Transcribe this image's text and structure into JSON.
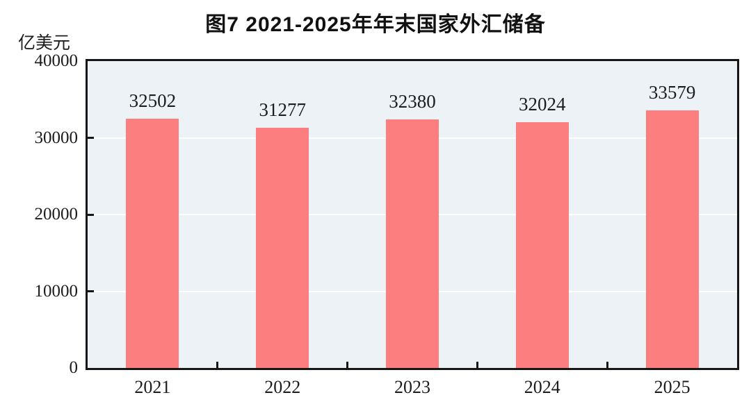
{
  "chart": {
    "title": "图7  2021-2025年年末国家外汇储备",
    "unit_label": "亿美元"
  },
  "chart_data": {
    "type": "bar",
    "title": "图7  2021-2025年年末国家外汇储备",
    "xlabel": "",
    "ylabel": "亿美元",
    "categories": [
      "2021",
      "2022",
      "2023",
      "2024",
      "2025"
    ],
    "values": [
      32502,
      31277,
      32380,
      32024,
      33579
    ],
    "data_labels_shown": true,
    "ylim": [
      0,
      40000
    ],
    "yticks": [
      0,
      10000,
      20000,
      30000,
      40000
    ],
    "legend_position": "none",
    "grid": "horizontal-white",
    "colors": {
      "bar_fill": "#FC7E7E",
      "plot_background": "#ECF2F6",
      "gridline": "#FFFFFF",
      "frame": "#161616",
      "text": "#1c1c1c"
    }
  }
}
